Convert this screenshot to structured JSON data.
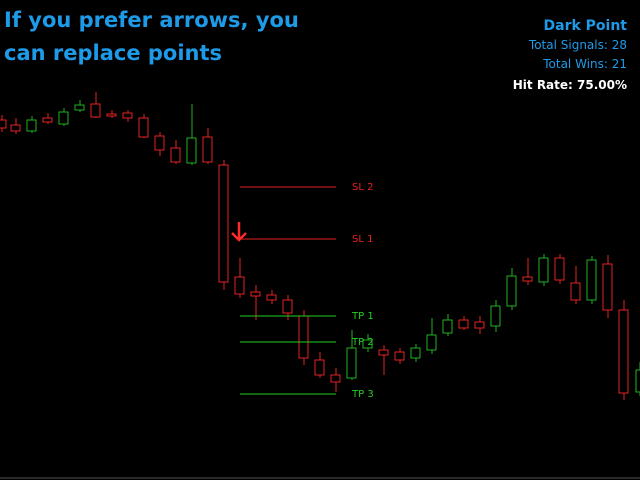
{
  "overlay_text": {
    "line1": "If you prefer arrows, you",
    "line2": "can replace points"
  },
  "stats": {
    "title": "Dark Point",
    "total_signals": "Total Signals: 28",
    "total_wins": "Total Wins: 21",
    "hit_rate": "Hit Rate: 75.00%"
  },
  "levels": {
    "sl2": "SL 2",
    "sl1": "SL 1",
    "tp1": "TP 1",
    "tp2": "TP 2",
    "tp3": "TP 3"
  }
}
